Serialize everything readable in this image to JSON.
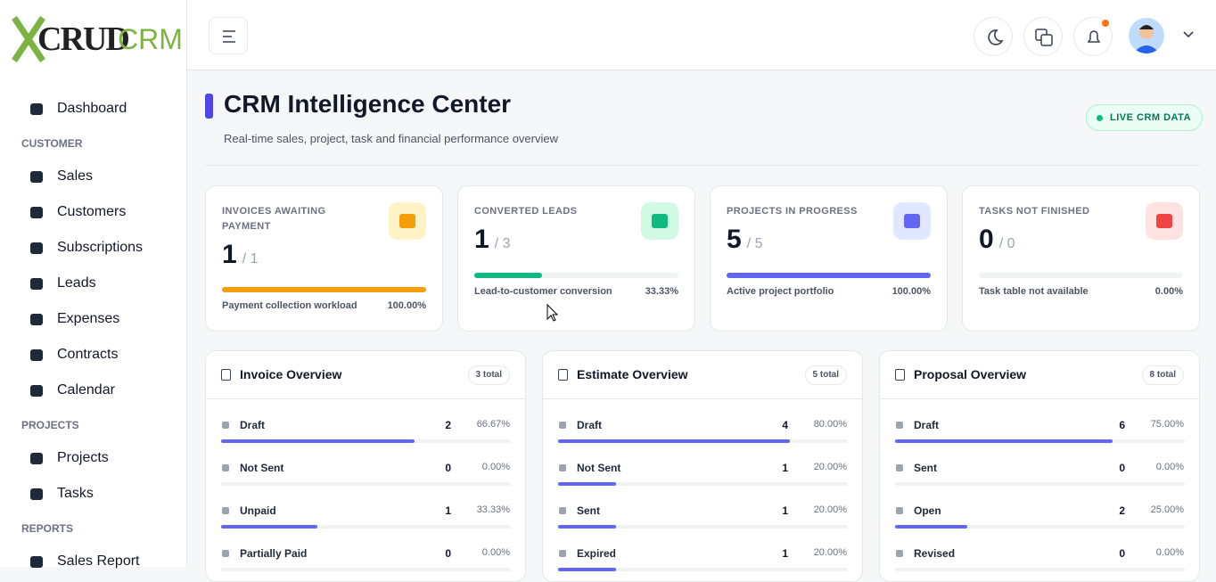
{
  "sidebar": {
    "logo": {
      "mark": "CRUD",
      "suffix": "CRM"
    },
    "nav": [
      {
        "label": "Dashboard"
      },
      {
        "heading": "CUSTOMER"
      },
      {
        "label": "Sales"
      },
      {
        "label": "Customers"
      },
      {
        "label": "Subscriptions"
      },
      {
        "label": "Leads"
      },
      {
        "label": "Expenses"
      },
      {
        "label": "Contracts"
      },
      {
        "label": "Calendar"
      },
      {
        "heading": "PROJECTS"
      },
      {
        "label": "Projects"
      },
      {
        "label": "Tasks"
      },
      {
        "heading": "REPORTS"
      },
      {
        "label": "Sales Report"
      }
    ]
  },
  "page": {
    "title": "CRM Intelligence Center",
    "subtitle": "Real-time sales, project, task and financial performance overview",
    "badge": "LIVE CRM DATA"
  },
  "kpis": [
    {
      "label": "INVOICES AWAITING PAYMENT",
      "value": 1,
      "total": "/ 1",
      "percent": 100,
      "percent_label": "100.00%",
      "caption": "Payment collection workload",
      "color": "#f59e0b",
      "icon_bg": "#fef3c7"
    },
    {
      "label": "CONVERTED LEADS",
      "value": 1,
      "total": "/ 3",
      "percent": 33.33,
      "percent_label": "33.33%",
      "caption": "Lead-to-customer conversion",
      "color": "#10b981",
      "icon_bg": "#d1fae5"
    },
    {
      "label": "PROJECTS IN PROGRESS",
      "value": 5,
      "total": "/ 5",
      "percent": 100,
      "percent_label": "100.00%",
      "caption": "Active project portfolio",
      "color": "#6366f1",
      "icon_bg": "#e0e7ff"
    },
    {
      "label": "TASKS NOT FINISHED",
      "value": 0,
      "total": "/ 0",
      "percent": 0,
      "percent_label": "0.00%",
      "caption": "Task table not available",
      "color": "#ef4444",
      "icon_bg": "#fee2e2"
    }
  ],
  "overviews": [
    {
      "title": "Invoice Overview",
      "total": "3 total",
      "rows": [
        {
          "label": "Draft",
          "count": 2,
          "percent": 66.67,
          "percent_label": "66.67%"
        },
        {
          "label": "Not Sent",
          "count": 0,
          "percent": 0,
          "percent_label": "0.00%"
        },
        {
          "label": "Unpaid",
          "count": 1,
          "percent": 33.33,
          "percent_label": "33.33%"
        },
        {
          "label": "Partially Paid",
          "count": 0,
          "percent": 0,
          "percent_label": "0.00%"
        }
      ]
    },
    {
      "title": "Estimate Overview",
      "total": "5 total",
      "rows": [
        {
          "label": "Draft",
          "count": 4,
          "percent": 80,
          "percent_label": "80.00%"
        },
        {
          "label": "Not Sent",
          "count": 1,
          "percent": 20,
          "percent_label": "20.00%"
        },
        {
          "label": "Sent",
          "count": 1,
          "percent": 20,
          "percent_label": "20.00%"
        },
        {
          "label": "Expired",
          "count": 1,
          "percent": 20,
          "percent_label": "20.00%"
        }
      ]
    },
    {
      "title": "Proposal Overview",
      "total": "8 total",
      "rows": [
        {
          "label": "Draft",
          "count": 6,
          "percent": 75,
          "percent_label": "75.00%"
        },
        {
          "label": "Sent",
          "count": 0,
          "percent": 0,
          "percent_label": "0.00%"
        },
        {
          "label": "Open",
          "count": 2,
          "percent": 25,
          "percent_label": "25.00%"
        },
        {
          "label": "Revised",
          "count": 0,
          "percent": 0,
          "percent_label": "0.00%"
        }
      ]
    }
  ]
}
